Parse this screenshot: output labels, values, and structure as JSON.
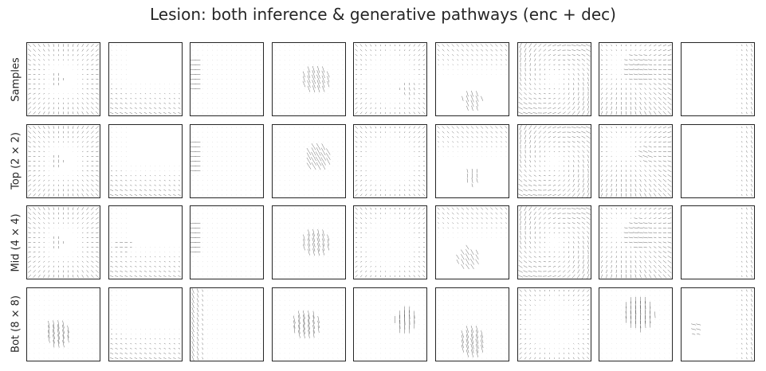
{
  "chart_data": {
    "type": "quiver",
    "title": "Lesion: both inference & generative pathways (enc + dec)",
    "rows": [
      "Samples",
      "Top (2 × 2)",
      "Mid (4 × 4)",
      "Bot (8 × 8)"
    ],
    "n_cols": 9,
    "grid": false,
    "ticks": false,
    "arrow_color": "#262626",
    "panels": [
      [
        {
          "field": "radial_out",
          "blob": {
            "cx": 0.42,
            "cy": 0.5,
            "r": 0.1,
            "angle": 90,
            "strength": 0.3
          }
        },
        {
          "field": "weak_bottom_left",
          "blob": null
        },
        {
          "field": "left_edge_horizontal",
          "blob": null
        },
        {
          "field": "calm",
          "blob": {
            "cx": 0.6,
            "cy": 0.5,
            "r": 0.18,
            "angle": 70,
            "strength": 0.9
          }
        },
        {
          "field": "diagonal_corners",
          "blob": {
            "cx": 0.75,
            "cy": 0.65,
            "r": 0.12,
            "angle": 80,
            "strength": 0.3
          }
        },
        {
          "field": "top_diagonal",
          "blob": {
            "cx": 0.5,
            "cy": 0.78,
            "r": 0.14,
            "angle": 70,
            "strength": 0.7
          }
        },
        {
          "field": "swirl",
          "blob": null
        },
        {
          "field": "diagonal_strong",
          "blob": {
            "cx": 0.55,
            "cy": 0.35,
            "r": 0.22,
            "angle": 10,
            "strength": 0.5
          }
        },
        {
          "field": "weak_right",
          "blob": null
        }
      ],
      [
        {
          "field": "radial_out",
          "blob": {
            "cx": 0.42,
            "cy": 0.5,
            "r": 0.1,
            "angle": 90,
            "strength": 0.3
          }
        },
        {
          "field": "weak_bottom_left",
          "blob": null
        },
        {
          "field": "left_edge_horizontal",
          "blob": null
        },
        {
          "field": "calm",
          "blob": {
            "cx": 0.62,
            "cy": 0.45,
            "r": 0.18,
            "angle": 60,
            "strength": 1.0
          }
        },
        {
          "field": "diagonal_corners",
          "blob": null
        },
        {
          "field": "top_diagonal",
          "blob": {
            "cx": 0.5,
            "cy": 0.72,
            "r": 0.12,
            "angle": 80,
            "strength": 0.5
          }
        },
        {
          "field": "swirl",
          "blob": null
        },
        {
          "field": "diagonal_strong",
          "blob": {
            "cx": 0.65,
            "cy": 0.4,
            "r": 0.12,
            "angle": 20,
            "strength": 0.5
          }
        },
        {
          "field": "weak_right",
          "blob": null
        }
      ],
      [
        {
          "field": "radial_out",
          "blob": {
            "cx": 0.42,
            "cy": 0.5,
            "r": 0.1,
            "angle": 90,
            "strength": 0.3
          }
        },
        {
          "field": "weak_bottom_left",
          "blob": {
            "cx": 0.2,
            "cy": 0.55,
            "r": 0.12,
            "angle": 10,
            "strength": 0.3
          }
        },
        {
          "field": "left_edge_horizontal",
          "blob": null
        },
        {
          "field": "calm",
          "blob": {
            "cx": 0.6,
            "cy": 0.5,
            "r": 0.18,
            "angle": 75,
            "strength": 0.9
          }
        },
        {
          "field": "diagonal_corners",
          "blob": null
        },
        {
          "field": "top_diagonal",
          "blob": {
            "cx": 0.45,
            "cy": 0.72,
            "r": 0.16,
            "angle": 60,
            "strength": 0.7
          }
        },
        {
          "field": "swirl",
          "blob": null
        },
        {
          "field": "diagonal_strong",
          "blob": {
            "cx": 0.55,
            "cy": 0.38,
            "r": 0.22,
            "angle": 10,
            "strength": 0.5
          }
        },
        {
          "field": "weak_right",
          "blob": null
        }
      ],
      [
        {
          "field": "calm_faint",
          "blob": {
            "cx": 0.42,
            "cy": 0.62,
            "r": 0.18,
            "angle": 80,
            "strength": 1.0
          }
        },
        {
          "field": "weak_bottom_left",
          "blob": null
        },
        {
          "field": "left_edge_steep",
          "blob": null
        },
        {
          "field": "calm",
          "blob": {
            "cx": 0.45,
            "cy": 0.5,
            "r": 0.2,
            "angle": 80,
            "strength": 1.0
          }
        },
        {
          "field": "calm",
          "blob": {
            "cx": 0.72,
            "cy": 0.45,
            "r": 0.16,
            "angle": 88,
            "strength": 1.0
          }
        },
        {
          "field": "calm",
          "blob": {
            "cx": 0.5,
            "cy": 0.75,
            "r": 0.2,
            "angle": 75,
            "strength": 1.0
          }
        },
        {
          "field": "diagonal_corners",
          "blob": null
        },
        {
          "field": "calm",
          "blob": {
            "cx": 0.55,
            "cy": 0.35,
            "r": 0.22,
            "angle": 88,
            "strength": 0.9
          }
        },
        {
          "field": "weak_right",
          "blob": {
            "cx": 0.2,
            "cy": 0.55,
            "r": 0.1,
            "angle": 15,
            "strength": 0.5
          }
        }
      ]
    ]
  }
}
